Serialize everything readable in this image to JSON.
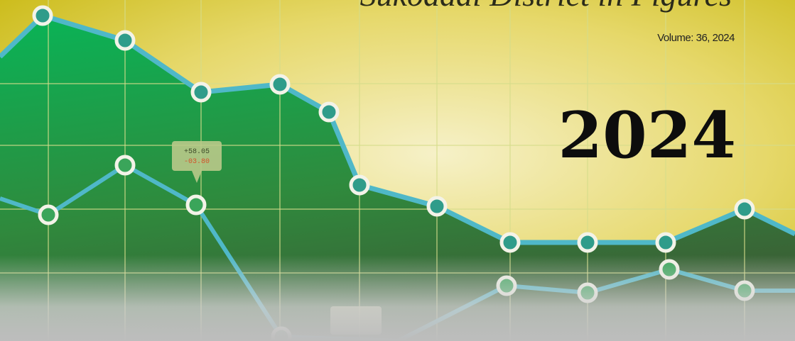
{
  "cover": {
    "title": "Sukodadi District in Figures",
    "volume": "Volume: 36, 2024",
    "year": "2024",
    "tags": [
      {
        "up": "+58.05",
        "down": "-03.80"
      }
    ]
  }
}
